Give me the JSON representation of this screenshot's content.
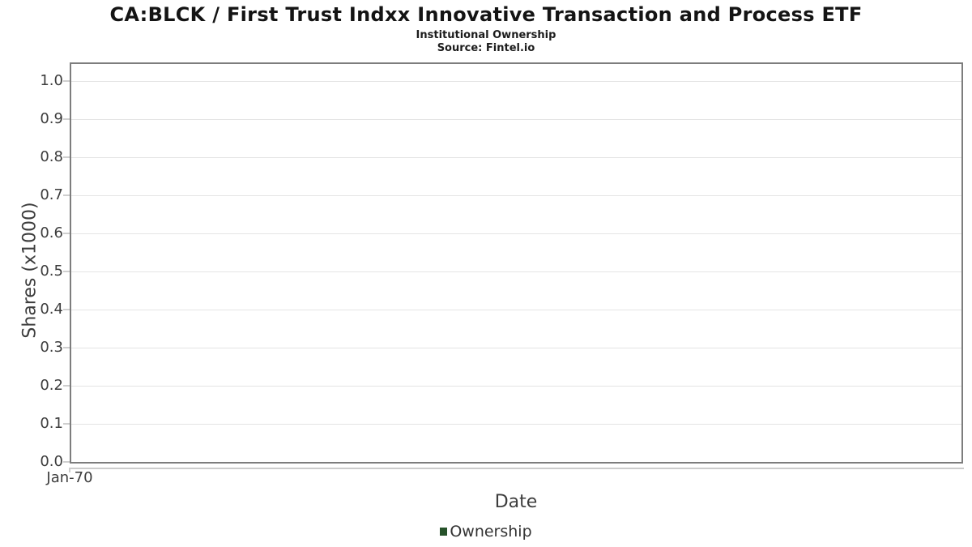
{
  "header": {
    "title": "CA:BLCK / First Trust Indxx Innovative Transaction and Process ETF",
    "subtitle": "Institutional Ownership",
    "source": "Source: Fintel.io"
  },
  "chart_data": {
    "type": "line",
    "title": "CA:BLCK / First Trust Indxx Innovative Transaction and Process ETF",
    "subtitle": "Institutional Ownership",
    "source": "Source: Fintel.io",
    "xlabel": "Date",
    "ylabel": "Shares (x1000)",
    "x_ticks": [
      "Jan-70"
    ],
    "y_ticks": [
      "0.0",
      "0.1",
      "0.2",
      "0.3",
      "0.4",
      "0.5",
      "0.6",
      "0.7",
      "0.8",
      "0.9",
      "1.0"
    ],
    "ylim": [
      0.0,
      1.05
    ],
    "grid": "horizontal-only",
    "legend_position": "bottom-center",
    "series": [
      {
        "name": "Ownership",
        "color": "#26522a",
        "x": [],
        "values": []
      }
    ],
    "note_empty": "no data points plotted"
  },
  "colors": {
    "plot_border": "#7d7d7d",
    "gridline": "#e4e4e4",
    "axis_line": "#cccccc",
    "tick_text": "#3d3d3d",
    "legend_green": "#26522a"
  }
}
